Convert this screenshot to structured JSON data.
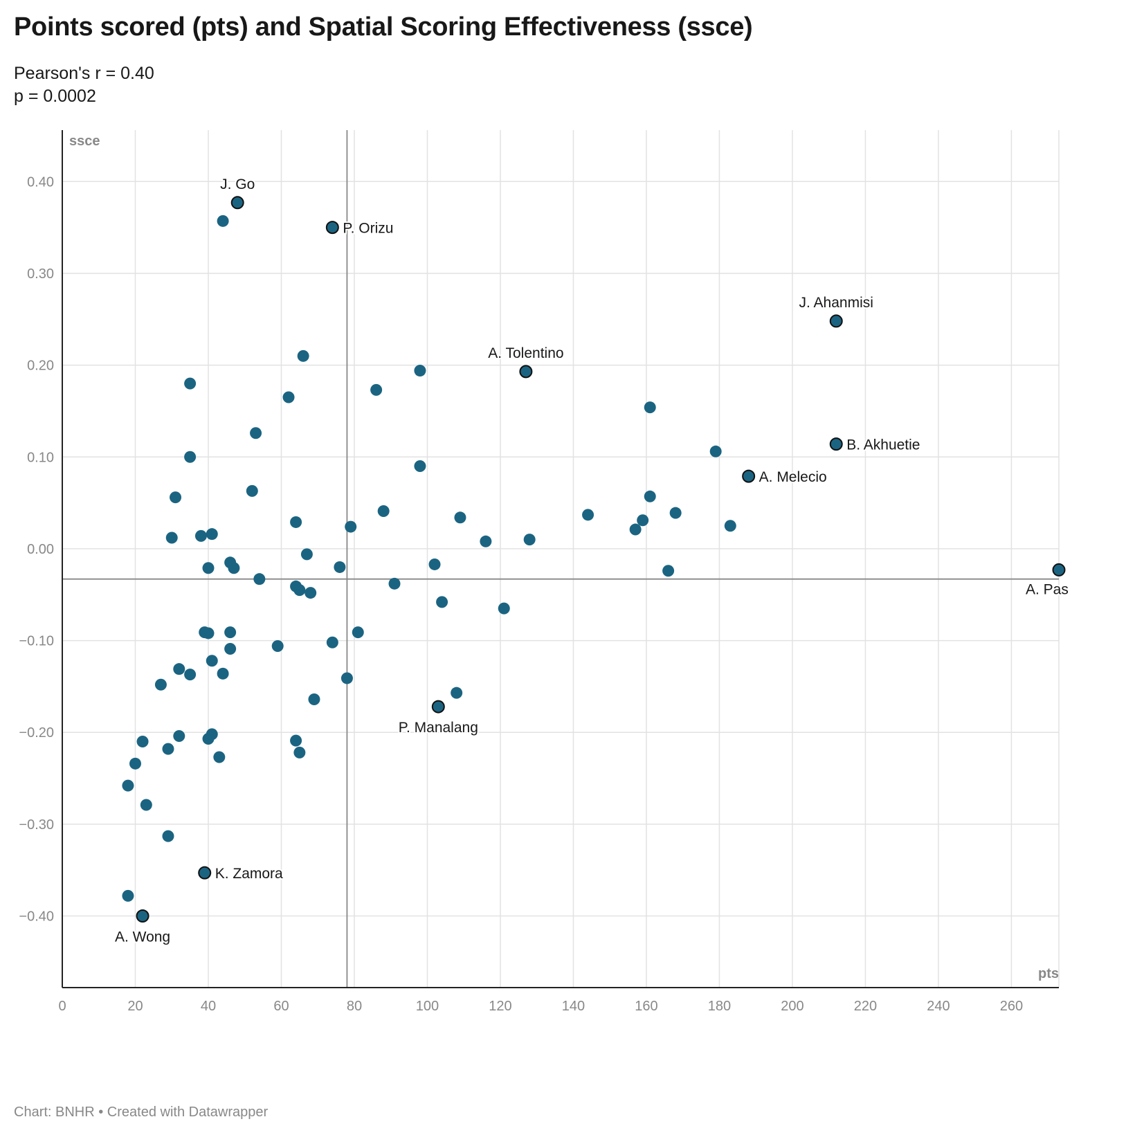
{
  "header": {
    "title": "Points scored (pts) and Spatial Scoring Effectiveness (ssce)",
    "subtitle_line1": "Pearson's r = 0.40",
    "subtitle_line2": "p = 0.0002"
  },
  "footer": {
    "text": "Chart: BNHR • Created with Datawrapper"
  },
  "colors": {
    "point": "#1b6481",
    "highlight": "#1b6481",
    "outline": "#111111",
    "grid": "#e2e2e2",
    "reference": "#888888"
  },
  "chart_data": {
    "type": "scatter",
    "xlabel": "pts",
    "ylabel": "ssce",
    "xlim": [
      0,
      273
    ],
    "ylim": [
      -0.478,
      0.456
    ],
    "xticks": [
      0,
      20,
      40,
      60,
      80,
      100,
      120,
      140,
      160,
      180,
      200,
      220,
      240,
      260
    ],
    "xtick_labels": [
      "0",
      "20",
      "40",
      "60",
      "80",
      "100",
      "120",
      "140",
      "160",
      "180",
      "200",
      "220",
      "240",
      "260"
    ],
    "yticks": [
      0.4,
      0.3,
      0.2,
      0.1,
      0.0,
      -0.1,
      -0.2,
      -0.3,
      -0.4
    ],
    "ytick_labels": [
      "0.40",
      "0.30",
      "0.20",
      "0.10",
      "0.00",
      "−0.10",
      "−0.20",
      "−0.30",
      "−0.40"
    ],
    "grid": true,
    "reference_lines": {
      "x": 78,
      "y": -0.033
    },
    "highlighted": [
      {
        "label": "J. Go",
        "x": 48,
        "y": 0.377,
        "label_pos": "above"
      },
      {
        "label": "P. Orizu",
        "x": 74,
        "y": 0.35,
        "label_pos": "right"
      },
      {
        "label": "J. Ahanmisi",
        "x": 212,
        "y": 0.248,
        "label_pos": "above"
      },
      {
        "label": "A. Tolentino",
        "x": 127,
        "y": 0.193,
        "label_pos": "above"
      },
      {
        "label": "B. Akhuetie",
        "x": 212,
        "y": 0.114,
        "label_pos": "right"
      },
      {
        "label": "A. Melecio",
        "x": 188,
        "y": 0.079,
        "label_pos": "right"
      },
      {
        "label": "A. Pas",
        "x": 273,
        "y": -0.023,
        "label_pos": "below-left"
      },
      {
        "label": "P. Manalang",
        "x": 103,
        "y": -0.172,
        "label_pos": "below"
      },
      {
        "label": "K. Zamora",
        "x": 39,
        "y": -0.353,
        "label_pos": "right"
      },
      {
        "label": "A. Wong",
        "x": 22,
        "y": -0.4,
        "label_pos": "below"
      }
    ],
    "points": [
      {
        "x": 44,
        "y": 0.357
      },
      {
        "x": 66,
        "y": 0.21
      },
      {
        "x": 98,
        "y": 0.194
      },
      {
        "x": 35,
        "y": 0.18
      },
      {
        "x": 86,
        "y": 0.173
      },
      {
        "x": 62,
        "y": 0.165
      },
      {
        "x": 161,
        "y": 0.154
      },
      {
        "x": 53,
        "y": 0.126
      },
      {
        "x": 179,
        "y": 0.106
      },
      {
        "x": 35,
        "y": 0.1
      },
      {
        "x": 98,
        "y": 0.09
      },
      {
        "x": 52,
        "y": 0.063
      },
      {
        "x": 31,
        "y": 0.056
      },
      {
        "x": 161,
        "y": 0.057
      },
      {
        "x": 88,
        "y": 0.041
      },
      {
        "x": 168,
        "y": 0.039
      },
      {
        "x": 144,
        "y": 0.037
      },
      {
        "x": 109,
        "y": 0.034
      },
      {
        "x": 159,
        "y": 0.031
      },
      {
        "x": 64,
        "y": 0.029
      },
      {
        "x": 183,
        "y": 0.025
      },
      {
        "x": 79,
        "y": 0.024
      },
      {
        "x": 157,
        "y": 0.021
      },
      {
        "x": 41,
        "y": 0.016
      },
      {
        "x": 38,
        "y": 0.014
      },
      {
        "x": 30,
        "y": 0.012
      },
      {
        "x": 128,
        "y": 0.01
      },
      {
        "x": 116,
        "y": 0.008
      },
      {
        "x": 67,
        "y": -0.006
      },
      {
        "x": 46,
        "y": -0.015
      },
      {
        "x": 102,
        "y": -0.017
      },
      {
        "x": 40,
        "y": -0.021
      },
      {
        "x": 47,
        "y": -0.021
      },
      {
        "x": 76,
        "y": -0.02
      },
      {
        "x": 166,
        "y": -0.024
      },
      {
        "x": 54,
        "y": -0.033
      },
      {
        "x": 91,
        "y": -0.038
      },
      {
        "x": 64,
        "y": -0.041
      },
      {
        "x": 65,
        "y": -0.045
      },
      {
        "x": 68,
        "y": -0.048
      },
      {
        "x": 104,
        "y": -0.058
      },
      {
        "x": 121,
        "y": -0.065
      },
      {
        "x": 39,
        "y": -0.091
      },
      {
        "x": 40,
        "y": -0.092
      },
      {
        "x": 46,
        "y": -0.091
      },
      {
        "x": 81,
        "y": -0.091
      },
      {
        "x": 74,
        "y": -0.102
      },
      {
        "x": 59,
        "y": -0.106
      },
      {
        "x": 46,
        "y": -0.109
      },
      {
        "x": 41,
        "y": -0.122
      },
      {
        "x": 32,
        "y": -0.131
      },
      {
        "x": 35,
        "y": -0.137
      },
      {
        "x": 44,
        "y": -0.136
      },
      {
        "x": 78,
        "y": -0.141
      },
      {
        "x": 27,
        "y": -0.148
      },
      {
        "x": 108,
        "y": -0.157
      },
      {
        "x": 69,
        "y": -0.164
      },
      {
        "x": 41,
        "y": -0.202
      },
      {
        "x": 32,
        "y": -0.204
      },
      {
        "x": 40,
        "y": -0.207
      },
      {
        "x": 22,
        "y": -0.21
      },
      {
        "x": 64,
        "y": -0.209
      },
      {
        "x": 29,
        "y": -0.218
      },
      {
        "x": 65,
        "y": -0.222
      },
      {
        "x": 43,
        "y": -0.227
      },
      {
        "x": 20,
        "y": -0.234
      },
      {
        "x": 18,
        "y": -0.258
      },
      {
        "x": 23,
        "y": -0.279
      },
      {
        "x": 29,
        "y": -0.313
      },
      {
        "x": 18,
        "y": -0.378
      }
    ]
  }
}
